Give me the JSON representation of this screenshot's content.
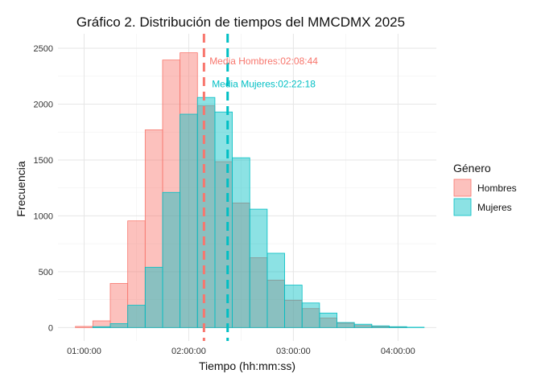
{
  "chart_data": {
    "type": "histogram",
    "title": "Gráfico 2. Distribución de tiempos del MMCDMX 2025",
    "xlabel": "Tiempo (hh:mm:ss)",
    "ylabel": "Frecuencia",
    "x_ticks": [
      "01:00:00",
      "02:00:00",
      "03:00:00",
      "04:00:00"
    ],
    "x_tick_minutes": [
      60,
      120,
      180,
      240
    ],
    "y_ticks": [
      0,
      500,
      1000,
      1500,
      2000,
      2500
    ],
    "xlim_minutes": [
      45,
      262
    ],
    "ylim": [
      -120,
      2630
    ],
    "bin_start_minutes": 55,
    "bin_width_minutes": 10,
    "grid": true,
    "legend": {
      "title": "Género",
      "position": "right"
    },
    "series": [
      {
        "name": "Hombres",
        "color": "#F8766D",
        "values": [
          10,
          60,
          395,
          955,
          1770,
          2395,
          2460,
          1985,
          1485,
          1115,
          625,
          425,
          245,
          170,
          85,
          40,
          18,
          10,
          4,
          0
        ]
      },
      {
        "name": "Mujeres",
        "color": "#00BFC4",
        "values": [
          0,
          8,
          35,
          200,
          540,
          1210,
          1910,
          2060,
          1930,
          1520,
          1060,
          665,
          380,
          220,
          130,
          45,
          30,
          15,
          8,
          3
        ]
      }
    ],
    "mean_lines": [
      {
        "series": "Hombres",
        "minutes": 128.73,
        "label": "Media Hombres:02:08:44"
      },
      {
        "series": "Mujeres",
        "minutes": 142.3,
        "label": "Media Mujeres:02:22:18"
      }
    ],
    "annotation_y": [
      2385,
      2180
    ]
  }
}
